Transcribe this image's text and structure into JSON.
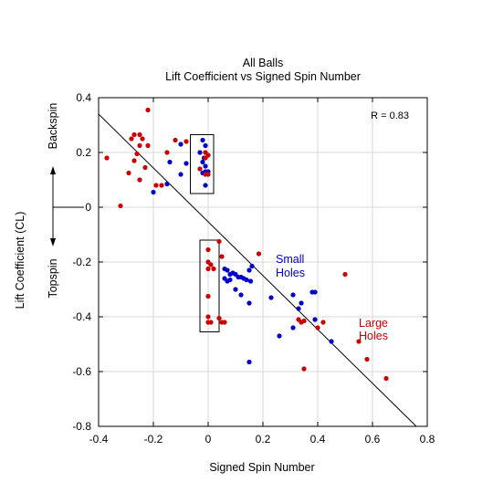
{
  "chart_data": {
    "type": "scatter",
    "title": "All Balls",
    "subtitle": "Lift Coefficient vs Signed Spin Number",
    "xlabel": "Signed Spin Number",
    "ylabel": "Lift Coefficient (CL)",
    "xlim": [
      -0.4,
      0.8
    ],
    "ylim": [
      -0.8,
      0.4
    ],
    "xticks": [
      "-0.4",
      "-0.2",
      "0",
      "0.2",
      "0.4",
      "0.6",
      "0.8"
    ],
    "yticks": [
      "0.4",
      "0.2",
      "0",
      "-0.2",
      "-0.4",
      "-0.6",
      "-0.8"
    ],
    "grid": true,
    "annotations": {
      "r_value": "R = 0.83",
      "backspin": "Backspin",
      "topspin": "Topspin",
      "small_holes": [
        "Small",
        "Holes"
      ],
      "large_holes": [
        "Large",
        "Holes"
      ]
    },
    "colors": {
      "small_holes": "#0000cc",
      "large_holes": "#cc0000",
      "axes": "#000000",
      "grid": "#d9d9d9"
    },
    "fit_line": {
      "x": [
        -0.4,
        0.76
      ],
      "y": [
        0.34,
        -0.8
      ]
    },
    "boxes": [
      {
        "x": [
          -0.065,
          0.02
        ],
        "y": [
          0.05,
          0.265
        ]
      },
      {
        "x": [
          -0.03,
          0.04
        ],
        "y": [
          -0.455,
          -0.12
        ]
      }
    ],
    "series": [
      {
        "name": "Small Holes",
        "color": "#0000cc",
        "points": [
          [
            -0.02,
            0.245
          ],
          [
            -0.01,
            0.225
          ],
          [
            -0.03,
            0.2
          ],
          [
            -0.015,
            0.18
          ],
          [
            -0.02,
            0.165
          ],
          [
            -0.01,
            0.15
          ],
          [
            0.0,
            0.13
          ],
          [
            -0.01,
            0.13
          ],
          [
            -0.02,
            0.125
          ],
          [
            -0.01,
            0.08
          ],
          [
            -0.1,
            0.23
          ],
          [
            -0.14,
            0.165
          ],
          [
            -0.08,
            0.16
          ],
          [
            -0.1,
            0.12
          ],
          [
            -0.15,
            0.085
          ],
          [
            -0.2,
            0.055
          ],
          [
            0.06,
            -0.225
          ],
          [
            0.07,
            -0.23
          ],
          [
            0.08,
            -0.245
          ],
          [
            0.09,
            -0.24
          ],
          [
            0.06,
            -0.26
          ],
          [
            0.08,
            -0.265
          ],
          [
            0.1,
            -0.245
          ],
          [
            0.11,
            -0.255
          ],
          [
            0.12,
            -0.255
          ],
          [
            0.13,
            -0.26
          ],
          [
            0.07,
            -0.27
          ],
          [
            0.15,
            -0.23
          ],
          [
            0.16,
            -0.215
          ],
          [
            0.14,
            -0.265
          ],
          [
            0.155,
            -0.27
          ],
          [
            0.12,
            -0.32
          ],
          [
            0.1,
            -0.3
          ],
          [
            0.15,
            -0.35
          ],
          [
            0.23,
            -0.33
          ],
          [
            0.31,
            -0.32
          ],
          [
            0.34,
            -0.35
          ],
          [
            0.33,
            -0.37
          ],
          [
            0.38,
            -0.31
          ],
          [
            0.39,
            -0.31
          ],
          [
            0.39,
            -0.41
          ],
          [
            0.31,
            -0.44
          ],
          [
            0.26,
            -0.47
          ],
          [
            0.45,
            -0.49
          ],
          [
            0.15,
            -0.565
          ]
        ]
      },
      {
        "name": "Large Holes",
        "color": "#cc0000",
        "points": [
          [
            -0.22,
            0.355
          ],
          [
            -0.27,
            0.265
          ],
          [
            -0.25,
            0.265
          ],
          [
            -0.28,
            0.25
          ],
          [
            -0.24,
            0.25
          ],
          [
            -0.25,
            0.225
          ],
          [
            -0.22,
            0.225
          ],
          [
            -0.26,
            0.195
          ],
          [
            -0.27,
            0.17
          ],
          [
            -0.23,
            0.145
          ],
          [
            -0.29,
            0.125
          ],
          [
            -0.25,
            0.1
          ],
          [
            -0.19,
            0.08
          ],
          [
            -0.17,
            0.08
          ],
          [
            -0.37,
            0.18
          ],
          [
            -0.32,
            0.005
          ],
          [
            -0.15,
            0.2
          ],
          [
            -0.12,
            0.245
          ],
          [
            -0.08,
            0.24
          ],
          [
            -0.01,
            0.2
          ],
          [
            0.0,
            0.19
          ],
          [
            -0.01,
            0.18
          ],
          [
            -0.03,
            0.14
          ],
          [
            -0.01,
            0.12
          ],
          [
            0.0,
            0.12
          ],
          [
            0.0,
            -0.155
          ],
          [
            0.0,
            -0.2
          ],
          [
            0.01,
            -0.21
          ],
          [
            0.0,
            -0.225
          ],
          [
            0.02,
            -0.225
          ],
          [
            0.04,
            -0.125
          ],
          [
            0.05,
            -0.18
          ],
          [
            0.0,
            -0.325
          ],
          [
            0.0,
            -0.4
          ],
          [
            0.01,
            -0.42
          ],
          [
            0.0,
            -0.42
          ],
          [
            0.04,
            -0.405
          ],
          [
            0.05,
            -0.42
          ],
          [
            0.06,
            -0.42
          ],
          [
            0.185,
            -0.17
          ],
          [
            0.33,
            -0.41
          ],
          [
            0.34,
            -0.42
          ],
          [
            0.35,
            -0.415
          ],
          [
            0.42,
            -0.42
          ],
          [
            0.4,
            -0.44
          ],
          [
            0.5,
            -0.245
          ],
          [
            0.55,
            -0.49
          ],
          [
            0.58,
            -0.555
          ],
          [
            0.65,
            -0.625
          ],
          [
            0.35,
            -0.59
          ]
        ]
      }
    ]
  }
}
